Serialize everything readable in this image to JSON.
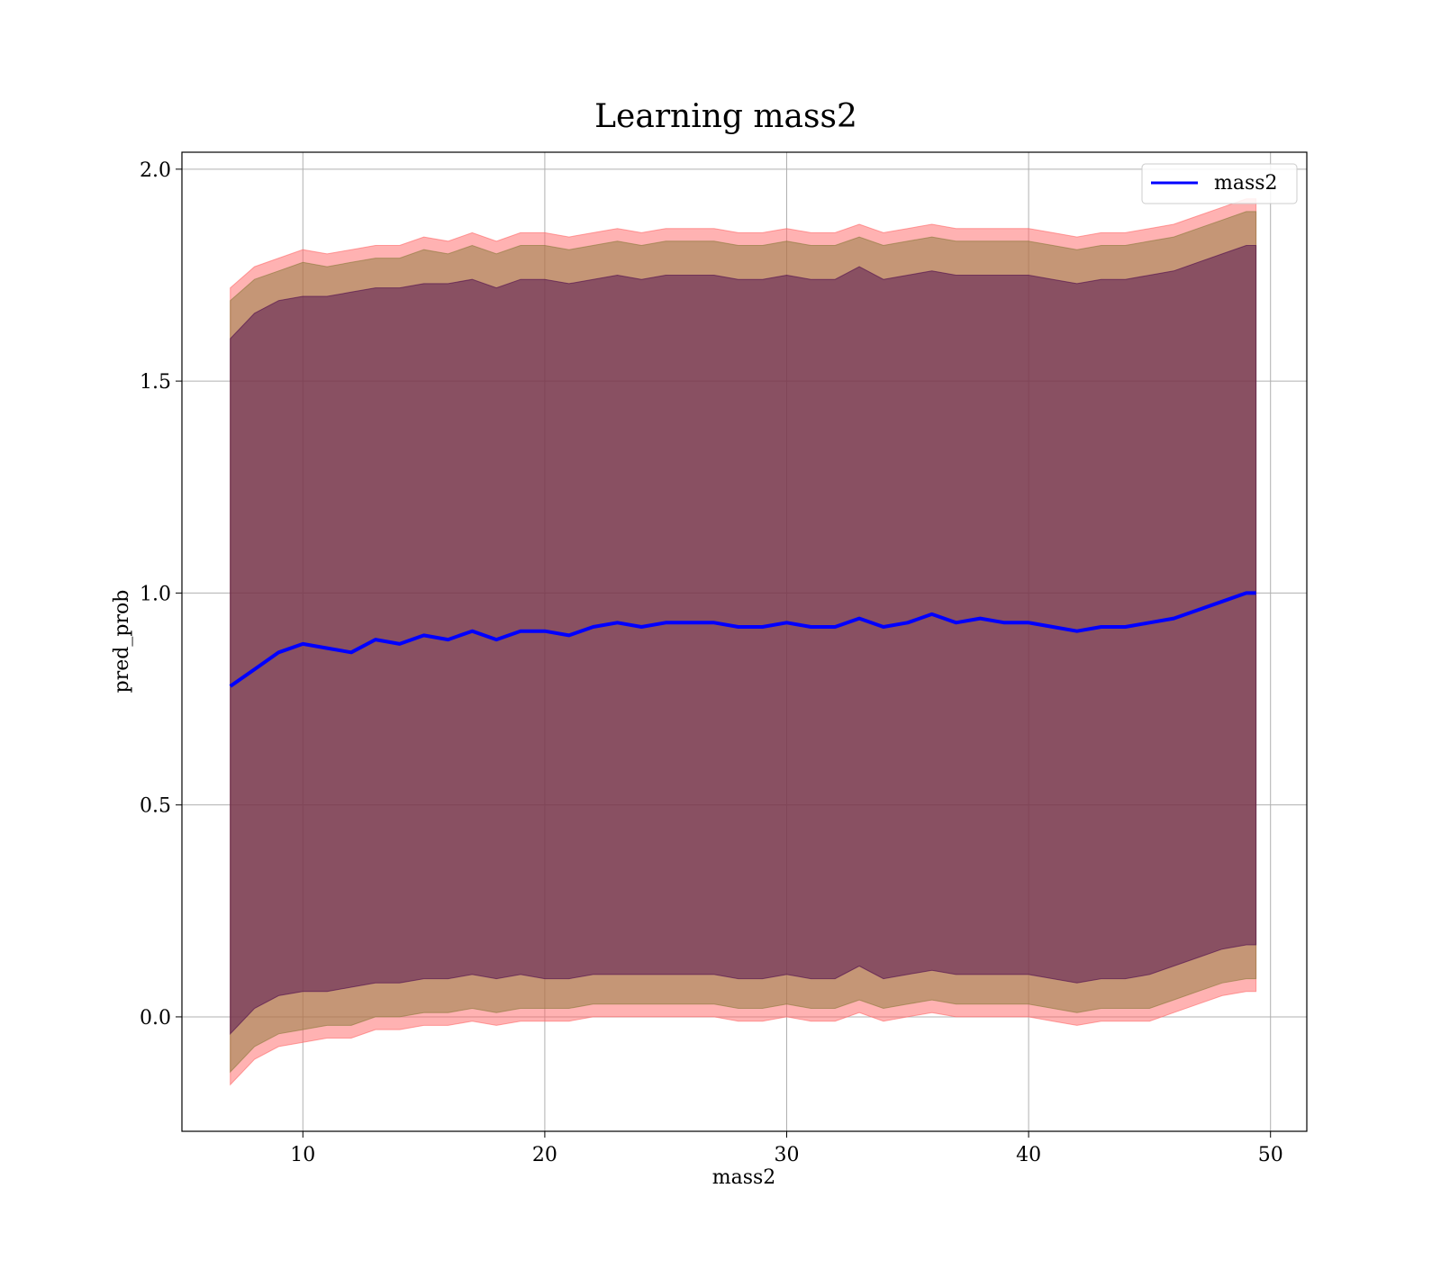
{
  "chart_data": {
    "type": "line",
    "title": "Learning mass2",
    "xlabel": "mass2",
    "ylabel": "pred_prob",
    "xlim": [
      5,
      51.5
    ],
    "ylim": [
      -0.27,
      2.04
    ],
    "xticks": [
      10,
      20,
      30,
      40,
      50
    ],
    "xtick_labels": [
      "10",
      "20",
      "30",
      "40",
      "50"
    ],
    "yticks": [
      0.0,
      0.5,
      1.0,
      1.5,
      2.0
    ],
    "ytick_labels": [
      "0.0",
      "0.5",
      "1.0",
      "1.5",
      "2.0"
    ],
    "grid": true,
    "legend": {
      "position": "top-right",
      "entries": [
        "mass2"
      ]
    },
    "colors": {
      "line": "#0000ff",
      "band_outer": "#ff6666",
      "band_middle": "#8b7a3a",
      "band_inner": "#4d0a4d"
    },
    "x": [
      7.0,
      8.0,
      9.0,
      10.0,
      11.0,
      12.0,
      13.0,
      14.0,
      15.0,
      16.0,
      17.0,
      18.0,
      19.0,
      20.0,
      21.0,
      22.0,
      23.0,
      24.0,
      25.0,
      26.0,
      27.0,
      28.0,
      29.0,
      30.0,
      31.0,
      32.0,
      33.0,
      34.0,
      35.0,
      36.0,
      37.0,
      38.0,
      39.0,
      40.0,
      41.0,
      42.0,
      43.0,
      44.0,
      45.0,
      46.0,
      47.0,
      48.0,
      49.0,
      49.4
    ],
    "series": [
      {
        "name": "mass2",
        "values": [
          0.78,
          0.82,
          0.86,
          0.88,
          0.87,
          0.86,
          0.89,
          0.88,
          0.9,
          0.89,
          0.91,
          0.89,
          0.91,
          0.91,
          0.9,
          0.92,
          0.93,
          0.92,
          0.93,
          0.93,
          0.93,
          0.92,
          0.92,
          0.93,
          0.92,
          0.92,
          0.94,
          0.92,
          0.93,
          0.95,
          0.93,
          0.94,
          0.93,
          0.93,
          0.92,
          0.91,
          0.92,
          0.92,
          0.93,
          0.94,
          0.96,
          0.98,
          1.0,
          1.0
        ]
      }
    ],
    "bands": [
      {
        "lower": [
          -0.16,
          -0.1,
          -0.07,
          -0.06,
          -0.05,
          -0.05,
          -0.03,
          -0.03,
          -0.02,
          -0.02,
          -0.01,
          -0.02,
          -0.01,
          -0.01,
          -0.01,
          0.0,
          0.0,
          0.0,
          0.0,
          0.0,
          0.0,
          -0.01,
          -0.01,
          0.0,
          -0.01,
          -0.01,
          0.01,
          -0.01,
          0.0,
          0.01,
          0.0,
          0.0,
          0.0,
          0.0,
          -0.01,
          -0.02,
          -0.01,
          -0.01,
          -0.01,
          0.01,
          0.03,
          0.05,
          0.06,
          0.06
        ],
        "upper": [
          1.72,
          1.77,
          1.79,
          1.81,
          1.8,
          1.81,
          1.82,
          1.82,
          1.84,
          1.83,
          1.85,
          1.83,
          1.85,
          1.85,
          1.84,
          1.85,
          1.86,
          1.85,
          1.86,
          1.86,
          1.86,
          1.85,
          1.85,
          1.86,
          1.85,
          1.85,
          1.87,
          1.85,
          1.86,
          1.87,
          1.86,
          1.86,
          1.86,
          1.86,
          1.85,
          1.84,
          1.85,
          1.85,
          1.86,
          1.87,
          1.89,
          1.91,
          1.93,
          1.93
        ]
      },
      {
        "lower": [
          -0.13,
          -0.07,
          -0.04,
          -0.03,
          -0.02,
          -0.02,
          0.0,
          0.0,
          0.01,
          0.01,
          0.02,
          0.01,
          0.02,
          0.02,
          0.02,
          0.03,
          0.03,
          0.03,
          0.03,
          0.03,
          0.03,
          0.02,
          0.02,
          0.03,
          0.02,
          0.02,
          0.04,
          0.02,
          0.03,
          0.04,
          0.03,
          0.03,
          0.03,
          0.03,
          0.02,
          0.01,
          0.02,
          0.02,
          0.02,
          0.04,
          0.06,
          0.08,
          0.09,
          0.09
        ],
        "upper": [
          1.69,
          1.74,
          1.76,
          1.78,
          1.77,
          1.78,
          1.79,
          1.79,
          1.81,
          1.8,
          1.82,
          1.8,
          1.82,
          1.82,
          1.81,
          1.82,
          1.83,
          1.82,
          1.83,
          1.83,
          1.83,
          1.82,
          1.82,
          1.83,
          1.82,
          1.82,
          1.84,
          1.82,
          1.83,
          1.84,
          1.83,
          1.83,
          1.83,
          1.83,
          1.82,
          1.81,
          1.82,
          1.82,
          1.83,
          1.84,
          1.86,
          1.88,
          1.9,
          1.9
        ]
      },
      {
        "lower": [
          -0.04,
          0.02,
          0.05,
          0.06,
          0.06,
          0.07,
          0.08,
          0.08,
          0.09,
          0.09,
          0.1,
          0.09,
          0.1,
          0.09,
          0.09,
          0.1,
          0.1,
          0.1,
          0.1,
          0.1,
          0.1,
          0.09,
          0.09,
          0.1,
          0.09,
          0.09,
          0.12,
          0.09,
          0.1,
          0.11,
          0.1,
          0.1,
          0.1,
          0.1,
          0.09,
          0.08,
          0.09,
          0.09,
          0.1,
          0.12,
          0.14,
          0.16,
          0.17,
          0.17
        ],
        "upper": [
          1.6,
          1.66,
          1.69,
          1.7,
          1.7,
          1.71,
          1.72,
          1.72,
          1.73,
          1.73,
          1.74,
          1.72,
          1.74,
          1.74,
          1.73,
          1.74,
          1.75,
          1.74,
          1.75,
          1.75,
          1.75,
          1.74,
          1.74,
          1.75,
          1.74,
          1.74,
          1.77,
          1.74,
          1.75,
          1.76,
          1.75,
          1.75,
          1.75,
          1.75,
          1.74,
          1.73,
          1.74,
          1.74,
          1.75,
          1.76,
          1.78,
          1.8,
          1.82,
          1.82
        ]
      }
    ]
  }
}
